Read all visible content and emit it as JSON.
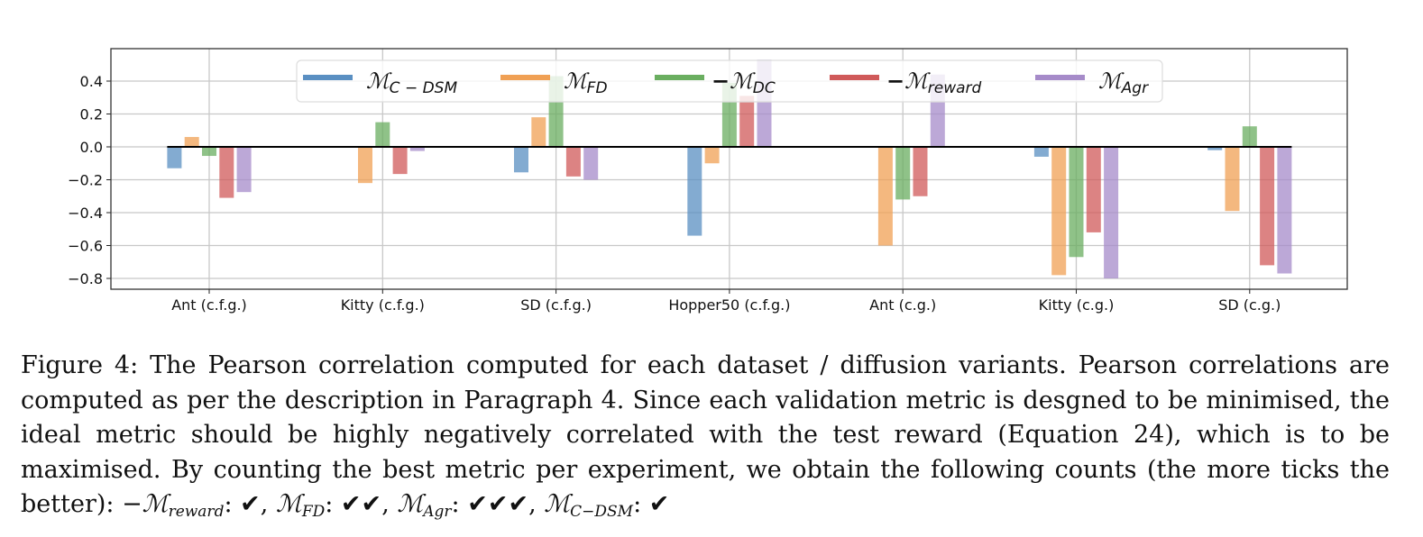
{
  "chart_data": {
    "type": "bar",
    "title": "",
    "xlabel": "",
    "ylabel": "",
    "ylim": [
      -0.86,
      0.59
    ],
    "yticks": [
      0.4,
      0.2,
      0.0,
      -0.2,
      -0.4,
      -0.6,
      -0.8
    ],
    "ytick_labels": [
      "0.4",
      "0.2",
      "0.0",
      "−0.2",
      "−0.4",
      "−0.6",
      "−0.8"
    ],
    "grid": true,
    "legend_position": "top-center",
    "categories": [
      "Ant (c.f.g.)",
      "Kitty (c.f.g.)",
      "SD (c.f.g.)",
      "Hopper50 (c.f.g.)",
      "Ant (c.g.)",
      "Kitty (c.g.)",
      "SD (c.g.)"
    ],
    "series": [
      {
        "name": "C-DSM",
        "legend_prefix": "",
        "legend_base": "ℳ",
        "legend_sub": "C − DSM",
        "color": "#5a8fc2",
        "values": [
          -0.13,
          0.0,
          -0.155,
          -0.54,
          0.0,
          -0.06,
          -0.02
        ]
      },
      {
        "name": "FD",
        "legend_prefix": "",
        "legend_base": "ℳ",
        "legend_sub": "FD",
        "color": "#f0a054",
        "values": [
          0.06,
          -0.22,
          0.18,
          -0.1,
          -0.6,
          -0.78,
          -0.39
        ]
      },
      {
        "name": "DC",
        "legend_prefix": "−",
        "legend_base": "ℳ",
        "legend_sub": "DC",
        "color": "#6aae60",
        "values": [
          -0.055,
          0.15,
          0.43,
          0.39,
          -0.32,
          -0.67,
          0.125
        ]
      },
      {
        "name": "reward",
        "legend_prefix": "−",
        "legend_base": "ℳ",
        "legend_sub": "reward",
        "color": "#d05a5a",
        "values": [
          -0.31,
          -0.165,
          -0.18,
          0.31,
          -0.3,
          -0.52,
          -0.72
        ]
      },
      {
        "name": "Agr",
        "legend_prefix": "",
        "legend_base": "ℳ",
        "legend_sub": "Agr",
        "color": "#a68bc9",
        "values": [
          -0.275,
          -0.025,
          -0.2,
          0.53,
          0.44,
          -0.8,
          -0.77
        ]
      }
    ]
  },
  "caption": {
    "text_main": "Figure 4: The Pearson correlation computed for each dataset / diffusion variants. Pearson correlations are computed as per the description in Paragraph 4. Since each validation metric is desgned to be minimised, the ideal metric should be highly negatively correlated with the test reward (Equation 24), which is to be maximised. By counting the best metric per experiment, we obtain the following counts (the more ticks the better): ",
    "counts": [
      {
        "prefix": "−",
        "base": "ℳ",
        "sub": "reward",
        "ticks": "✔"
      },
      {
        "prefix": "",
        "base": "ℳ",
        "sub": "FD",
        "ticks": "✔✔"
      },
      {
        "prefix": "",
        "base": "ℳ",
        "sub": "Agr",
        "ticks": "✔✔✔"
      },
      {
        "prefix": "",
        "base": "ℳ",
        "sub": "C−DSM",
        "ticks": "✔"
      }
    ]
  }
}
